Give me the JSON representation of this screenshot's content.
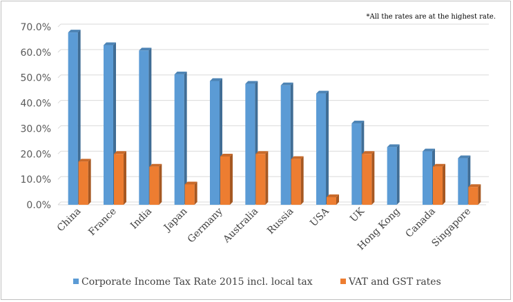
{
  "chart_data": {
    "type": "bar",
    "note": "*All the rates are at the highest rate.",
    "categories": [
      "China",
      "France",
      "India",
      "Japan",
      "Germany",
      "Australia",
      "Russia",
      "USA",
      "UK",
      "Hong Kong",
      "Canada",
      "Singapore"
    ],
    "series": [
      {
        "name": "Corporate Income Tax Rate 2015 incl. local tax",
        "color": "#5b9bd5",
        "values": [
          67.8,
          62.8,
          60.7,
          51.3,
          48.7,
          47.6,
          47.0,
          43.8,
          32.0,
          22.7,
          21.0,
          18.3
        ]
      },
      {
        "name": "VAT and GST rates",
        "color": "#ed7d31",
        "values": [
          17.0,
          20.0,
          15.0,
          8.0,
          19.0,
          20.0,
          18.0,
          3.0,
          20.0,
          null,
          15.0,
          7.0
        ]
      }
    ],
    "ylim": [
      0,
      70
    ],
    "yticks": [
      "0.0%",
      "10.0%",
      "20.0%",
      "30.0%",
      "40.0%",
      "50.0%",
      "60.0%",
      "70.0%"
    ],
    "grid": true,
    "legend": "bottom",
    "style": "3d-column"
  }
}
